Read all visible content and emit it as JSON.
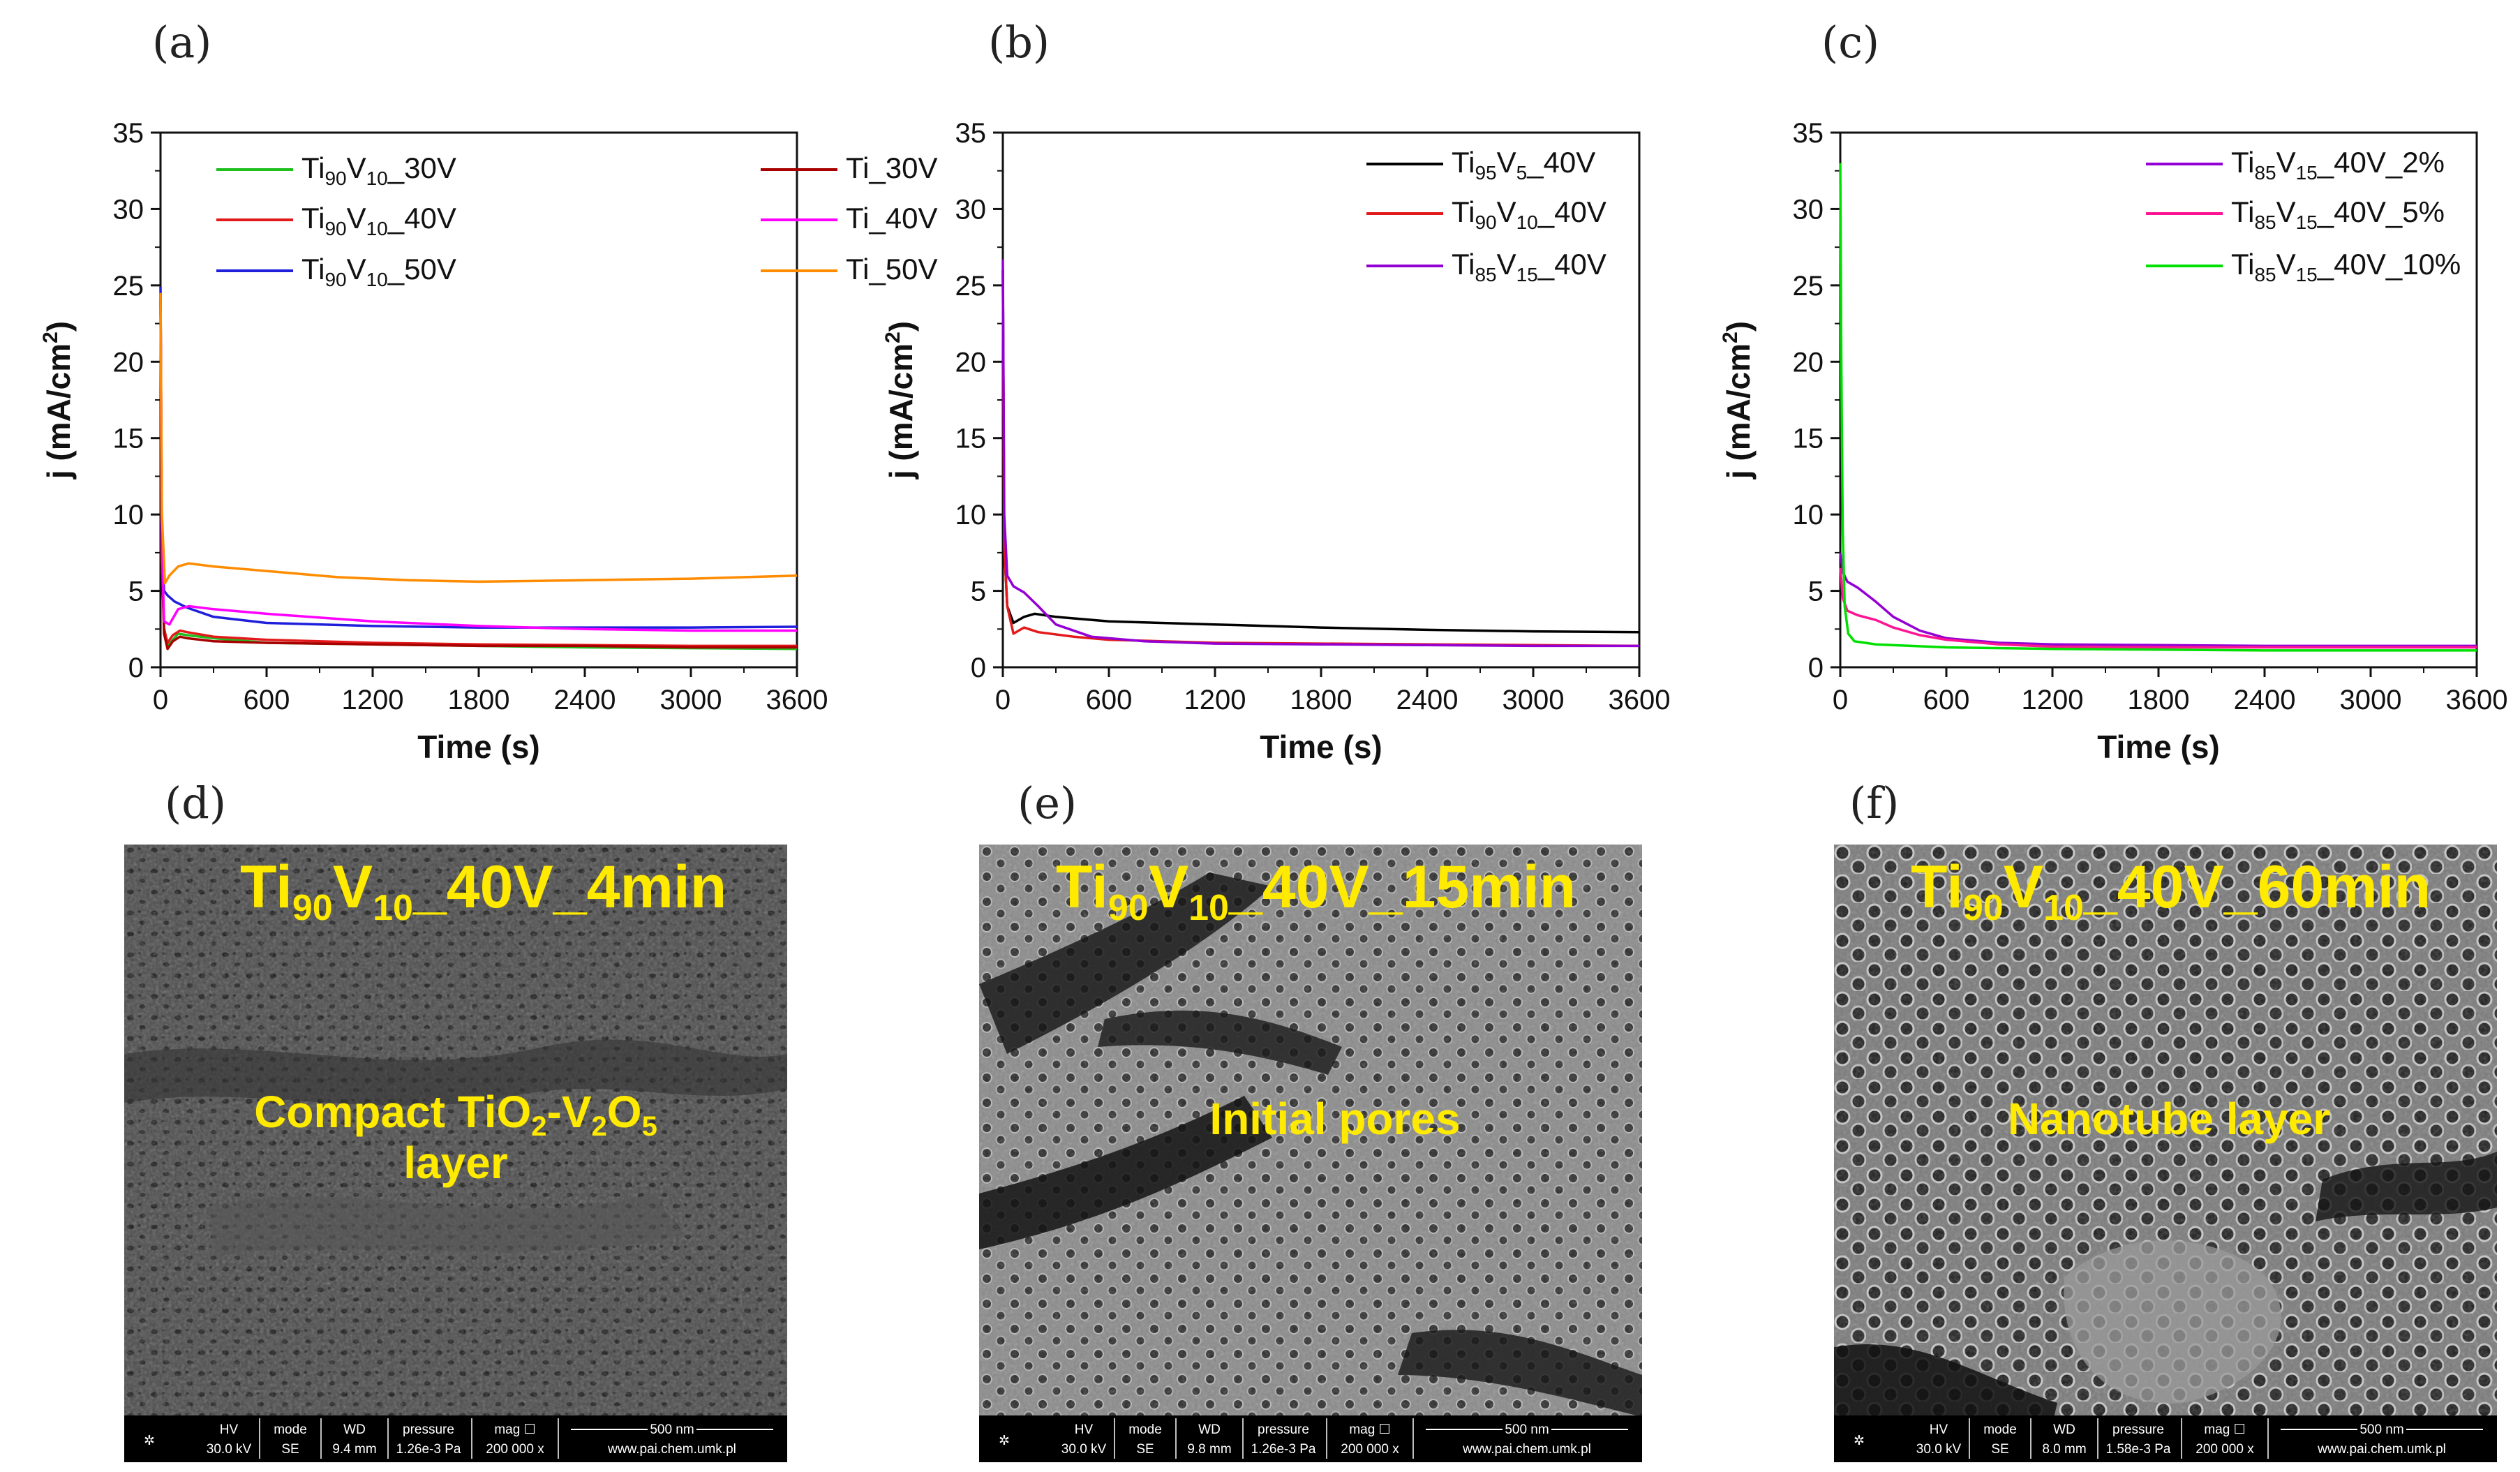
{
  "chart_data": [
    {
      "panel": "(a)",
      "type": "line",
      "xlabel": "Time (s)",
      "ylabel": "j (mA/cm",
      "ylabel_sup": "2",
      "ylabel_close": ")",
      "xlim": [
        0,
        3600
      ],
      "ylim": [
        0,
        35
      ],
      "xticks": [
        0,
        600,
        1200,
        1800,
        2400,
        3000,
        3600
      ],
      "yticks": [
        0,
        5,
        10,
        15,
        20,
        25,
        30,
        35
      ],
      "series": [
        {
          "name": "Ti90V10_30V",
          "base": "Ti",
          "sub1": "90",
          "mid": "V",
          "sub2": "10",
          "suffix": "_30V",
          "color": "#1fbf1f",
          "points": [
            [
              0,
              24.5
            ],
            [
              8,
              7
            ],
            [
              20,
              2.6
            ],
            [
              40,
              1.4
            ],
            [
              70,
              1.8
            ],
            [
              100,
              2.2
            ],
            [
              150,
              2.1
            ],
            [
              300,
              1.9
            ],
            [
              600,
              1.6
            ],
            [
              1200,
              1.5
            ],
            [
              1800,
              1.4
            ],
            [
              2400,
              1.3
            ],
            [
              3000,
              1.25
            ],
            [
              3600,
              1.2
            ]
          ]
        },
        {
          "name": "Ti90V10_40V",
          "base": "Ti",
          "sub1": "90",
          "mid": "V",
          "sub2": "10",
          "suffix": "_40V",
          "color": "#e31a1c",
          "points": [
            [
              0,
              24.5
            ],
            [
              8,
              7
            ],
            [
              20,
              2.5
            ],
            [
              40,
              1.6
            ],
            [
              70,
              2.1
            ],
            [
              110,
              2.4
            ],
            [
              150,
              2.3
            ],
            [
              300,
              2.0
            ],
            [
              600,
              1.8
            ],
            [
              1200,
              1.6
            ],
            [
              1800,
              1.5
            ],
            [
              2400,
              1.45
            ],
            [
              3000,
              1.4
            ],
            [
              3600,
              1.4
            ]
          ]
        },
        {
          "name": "Ti90V10_50V",
          "base": "Ti",
          "sub1": "90",
          "mid": "V",
          "sub2": "10",
          "suffix": "_50V",
          "color": "#1f1fdb",
          "points": [
            [
              0,
              24.9
            ],
            [
              8,
              8
            ],
            [
              20,
              5
            ],
            [
              40,
              4.7
            ],
            [
              80,
              4.3
            ],
            [
              150,
              3.9
            ],
            [
              300,
              3.3
            ],
            [
              600,
              2.9
            ],
            [
              1200,
              2.7
            ],
            [
              1800,
              2.6
            ],
            [
              2400,
              2.6
            ],
            [
              3000,
              2.6
            ],
            [
              3600,
              2.65
            ]
          ]
        },
        {
          "name": "Ti_30V",
          "base": "Ti",
          "sub1": "",
          "mid": "",
          "sub2": "",
          "suffix": "_30V",
          "color": "#a80000",
          "points": [
            [
              0,
              24
            ],
            [
              8,
              7
            ],
            [
              20,
              2.2
            ],
            [
              40,
              1.2
            ],
            [
              70,
              1.7
            ],
            [
              110,
              2.0
            ],
            [
              150,
              1.9
            ],
            [
              300,
              1.7
            ],
            [
              600,
              1.6
            ],
            [
              1200,
              1.5
            ],
            [
              1800,
              1.4
            ],
            [
              2400,
              1.4
            ],
            [
              3000,
              1.3
            ],
            [
              3600,
              1.3
            ]
          ]
        },
        {
          "name": "Ti_40V",
          "base": "Ti",
          "sub1": "",
          "mid": "",
          "sub2": "",
          "suffix": "_40V",
          "color": "#ff00ff",
          "points": [
            [
              0,
              24.3
            ],
            [
              8,
              8
            ],
            [
              20,
              3
            ],
            [
              50,
              2.8
            ],
            [
              100,
              3.8
            ],
            [
              160,
              4.0
            ],
            [
              300,
              3.8
            ],
            [
              600,
              3.5
            ],
            [
              1200,
              3.0
            ],
            [
              1800,
              2.7
            ],
            [
              2400,
              2.5
            ],
            [
              3000,
              2.4
            ],
            [
              3600,
              2.4
            ]
          ]
        },
        {
          "name": "Ti_50V",
          "base": "Ti",
          "sub1": "",
          "mid": "",
          "sub2": "",
          "suffix": "_50V",
          "color": "#ff8c00",
          "points": [
            [
              0,
              24.5
            ],
            [
              8,
              10
            ],
            [
              25,
              5.5
            ],
            [
              50,
              6.0
            ],
            [
              100,
              6.6
            ],
            [
              160,
              6.8
            ],
            [
              300,
              6.6
            ],
            [
              600,
              6.3
            ],
            [
              1000,
              5.9
            ],
            [
              1400,
              5.7
            ],
            [
              1800,
              5.6
            ],
            [
              2400,
              5.7
            ],
            [
              3000,
              5.8
            ],
            [
              3600,
              6.0
            ]
          ]
        }
      ]
    },
    {
      "panel": "(b)",
      "type": "line",
      "xlabel": "Time (s)",
      "ylabel": "j (mA/cm",
      "ylabel_sup": "2",
      "ylabel_close": ")",
      "xlim": [
        0,
        3600
      ],
      "ylim": [
        0,
        35
      ],
      "xticks": [
        0,
        600,
        1200,
        1800,
        2400,
        3000,
        3600
      ],
      "yticks": [
        0,
        5,
        10,
        15,
        20,
        25,
        30,
        35
      ],
      "series": [
        {
          "name": "Ti95V5_40V",
          "base": "Ti",
          "sub1": "95",
          "mid": "V",
          "sub2": "5",
          "suffix": "_40V",
          "color": "#000000",
          "points": [
            [
              0,
              26
            ],
            [
              8,
              8
            ],
            [
              25,
              4
            ],
            [
              60,
              2.9
            ],
            [
              120,
              3.3
            ],
            [
              180,
              3.5
            ],
            [
              300,
              3.3
            ],
            [
              600,
              3.0
            ],
            [
              1200,
              2.8
            ],
            [
              1800,
              2.6
            ],
            [
              2400,
              2.45
            ],
            [
              3000,
              2.35
            ],
            [
              3600,
              2.3
            ]
          ]
        },
        {
          "name": "Ti90V10_40V",
          "base": "Ti",
          "sub1": "90",
          "mid": "V",
          "sub2": "10",
          "suffix": "_40V",
          "color": "#e31a1c",
          "points": [
            [
              0,
              26
            ],
            [
              8,
              8
            ],
            [
              25,
              4
            ],
            [
              60,
              2.2
            ],
            [
              120,
              2.6
            ],
            [
              200,
              2.3
            ],
            [
              400,
              2.0
            ],
            [
              600,
              1.8
            ],
            [
              1200,
              1.6
            ],
            [
              1800,
              1.55
            ],
            [
              2400,
              1.5
            ],
            [
              3000,
              1.45
            ],
            [
              3600,
              1.4
            ]
          ]
        },
        {
          "name": "Ti85V15_40V",
          "base": "Ti",
          "sub1": "85",
          "mid": "V",
          "sub2": "15",
          "suffix": "_40V",
          "color": "#9400d3",
          "points": [
            [
              0,
              26.7
            ],
            [
              8,
              10
            ],
            [
              25,
              6
            ],
            [
              60,
              5.3
            ],
            [
              120,
              4.9
            ],
            [
              200,
              4.0
            ],
            [
              300,
              2.8
            ],
            [
              500,
              2.0
            ],
            [
              800,
              1.7
            ],
            [
              1200,
              1.55
            ],
            [
              1800,
              1.5
            ],
            [
              2400,
              1.45
            ],
            [
              3000,
              1.4
            ],
            [
              3600,
              1.4
            ]
          ]
        }
      ]
    },
    {
      "panel": "(c)",
      "type": "line",
      "xlabel": "Time (s)",
      "ylabel": "j (mA/cm",
      "ylabel_sup": "2",
      "ylabel_close": ")",
      "xlim": [
        0,
        3600
      ],
      "ylim": [
        0,
        35
      ],
      "xticks": [
        0,
        600,
        1200,
        1800,
        2400,
        3000,
        3600
      ],
      "yticks": [
        0,
        5,
        10,
        15,
        20,
        25,
        30,
        35
      ],
      "series": [
        {
          "name": "Ti85V15_40V_2%",
          "base": "Ti",
          "sub1": "85",
          "mid": "V",
          "sub2": "15",
          "suffix": "_40V_2%",
          "color": "#9400d3",
          "points": [
            [
              0,
              7.5
            ],
            [
              15,
              6.2
            ],
            [
              40,
              5.6
            ],
            [
              100,
              5.2
            ],
            [
              200,
              4.3
            ],
            [
              300,
              3.3
            ],
            [
              450,
              2.4
            ],
            [
              600,
              1.9
            ],
            [
              900,
              1.6
            ],
            [
              1200,
              1.5
            ],
            [
              1800,
              1.45
            ],
            [
              2400,
              1.4
            ],
            [
              3000,
              1.4
            ],
            [
              3600,
              1.4
            ]
          ]
        },
        {
          "name": "Ti85V15_40V_5%",
          "base": "Ti",
          "sub1": "85",
          "mid": "V",
          "sub2": "15",
          "suffix": "_40V_5%",
          "color": "#ff1493",
          "points": [
            [
              0,
              6.5
            ],
            [
              15,
              4.5
            ],
            [
              40,
              3.7
            ],
            [
              100,
              3.4
            ],
            [
              200,
              3.1
            ],
            [
              300,
              2.6
            ],
            [
              450,
              2.1
            ],
            [
              600,
              1.8
            ],
            [
              900,
              1.5
            ],
            [
              1200,
              1.35
            ],
            [
              1800,
              1.3
            ],
            [
              2400,
              1.3
            ],
            [
              3000,
              1.3
            ],
            [
              3600,
              1.3
            ]
          ]
        },
        {
          "name": "Ti85V15_40V_10%",
          "base": "Ti",
          "sub1": "85",
          "mid": "V",
          "sub2": "15",
          "suffix": "_40V_10%",
          "color": "#00e000",
          "points": [
            [
              0,
              33
            ],
            [
              6,
              20
            ],
            [
              14,
              9
            ],
            [
              25,
              4
            ],
            [
              45,
              2.2
            ],
            [
              80,
              1.7
            ],
            [
              200,
              1.5
            ],
            [
              600,
              1.3
            ],
            [
              1200,
              1.2
            ],
            [
              1800,
              1.15
            ],
            [
              2400,
              1.1
            ],
            [
              3000,
              1.1
            ],
            [
              3600,
              1.1
            ]
          ]
        }
      ]
    }
  ],
  "sem_panels": [
    {
      "letter": "(d)",
      "title_base": "Ti",
      "title_sub1": "90",
      "title_mid": "V",
      "title_sub2": "10",
      "title_suffix": "_40V_4min",
      "label_line1_pre": "Compact TiO",
      "label_line1_sub1": "2",
      "label_line1_mid": "-V",
      "label_line1_sub2": "2",
      "label_line1_mid2": "O",
      "label_line1_sub3": "5",
      "label_line2": "layer",
      "databar": {
        "hv_h": "HV",
        "mode_h": "mode",
        "wd_h": "WD",
        "pressure_h": "pressure",
        "mag_h": "mag ☐",
        "scale": "500 nm",
        "hv": "30.0 kV",
        "mode": "SE",
        "wd": "9.4 mm",
        "pressure": "1.26e-3 Pa",
        "mag": "200 000 x",
        "url": "www.pai.chem.umk.pl"
      }
    },
    {
      "letter": "(e)",
      "title_base": "Ti",
      "title_sub1": "90",
      "title_mid": "V",
      "title_sub2": "10",
      "title_suffix": "_40V_15min",
      "label_line1": "Initial pores",
      "databar": {
        "hv_h": "HV",
        "mode_h": "mode",
        "wd_h": "WD",
        "pressure_h": "pressure",
        "mag_h": "mag ☐",
        "scale": "500 nm",
        "hv": "30.0 kV",
        "mode": "SE",
        "wd": "9.8 mm",
        "pressure": "1.26e-3 Pa",
        "mag": "200 000 x",
        "url": "www.pai.chem.umk.pl"
      }
    },
    {
      "letter": "(f)",
      "title_base": "Ti",
      "title_sub1": "90",
      "title_mid": "V",
      "title_sub2": "10",
      "title_suffix": "_40V_60min",
      "label_line1": "Nanotube layer",
      "databar": {
        "hv_h": "HV",
        "mode_h": "mode",
        "wd_h": "WD",
        "pressure_h": "pressure",
        "mag_h": "mag ☐",
        "scale": "500 nm",
        "hv": "30.0 kV",
        "mode": "SE",
        "wd": "8.0 mm",
        "pressure": "1.58e-3 Pa",
        "mag": "200 000 x",
        "url": "www.pai.chem.umk.pl"
      }
    }
  ]
}
